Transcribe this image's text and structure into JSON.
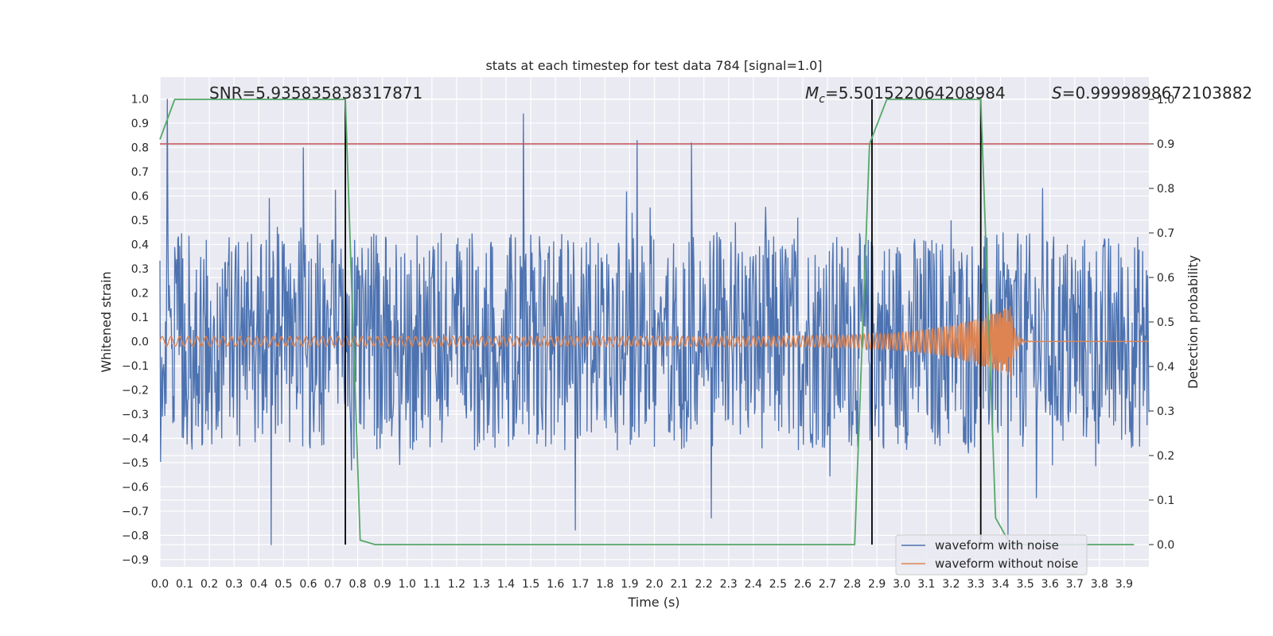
{
  "chart_data": {
    "type": "line",
    "title": "stats at each timestep for test data 784 [signal=1.0]",
    "xlabel": "Time (s)",
    "ylabel": "Whitened strain",
    "y2label": "Detection probability",
    "xlim": [
      0.0,
      4.0
    ],
    "ylim": [
      -0.93,
      1.09
    ],
    "y2lim": [
      -0.05,
      1.05
    ],
    "grid": true,
    "legend_position": "bottom-right",
    "x_ticks": [
      "0.0",
      "0.1",
      "0.2",
      "0.3",
      "0.4",
      "0.5",
      "0.6",
      "0.7",
      "0.8",
      "0.9",
      "1.0",
      "1.1",
      "1.2",
      "1.3",
      "1.4",
      "1.5",
      "1.6",
      "1.7",
      "1.8",
      "1.9",
      "2.0",
      "2.1",
      "2.2",
      "2.3",
      "2.4",
      "2.5",
      "2.6",
      "2.7",
      "2.8",
      "2.9",
      "3.0",
      "3.1",
      "3.2",
      "3.3",
      "3.4",
      "3.5",
      "3.6",
      "3.7",
      "3.8",
      "3.9"
    ],
    "y_ticks": [
      "1.0",
      "0.9",
      "0.8",
      "0.7",
      "0.6",
      "0.5",
      "0.4",
      "0.3",
      "0.2",
      "0.1",
      "0.0",
      "-0.1",
      "-0.2",
      "-0.3",
      "-0.4",
      "-0.5",
      "-0.6",
      "-0.7",
      "-0.8",
      "-0.9"
    ],
    "y2_ticks": [
      "1.0",
      "0.9",
      "0.8",
      "0.7",
      "0.6",
      "0.5",
      "0.4",
      "0.3",
      "0.2",
      "0.1",
      "0.0"
    ],
    "annotations": {
      "snr": "SNR=5.935835838317871",
      "mc_symbol": "M",
      "mc_sub": "c",
      "mc_value": "=5.501522064208984",
      "s_symbol": "S",
      "s_value": "=0.9999898672103882"
    },
    "series": [
      {
        "name": "waveform with noise",
        "color": "#4c72b0",
        "kind": "noise",
        "amplitude": 0.45,
        "peaks": [
          [
            0.03,
            1.0
          ],
          [
            0.58,
            0.8
          ],
          [
            1.47,
            0.94
          ],
          [
            1.93,
            0.83
          ],
          [
            2.15,
            0.82
          ],
          [
            0.45,
            -0.84
          ],
          [
            1.68,
            -0.78
          ],
          [
            2.23,
            -0.73
          ],
          [
            3.43,
            -0.82
          ]
        ]
      },
      {
        "name": "waveform without noise",
        "color": "#dd8452",
        "kind": "chirp",
        "t_merger": 3.44,
        "amp_start": 0.02,
        "amp_peak": 0.15
      },
      {
        "color": "#55a868",
        "axis": "y2",
        "x": [
          0.0,
          0.06,
          0.12,
          0.75,
          0.81,
          0.87,
          2.81,
          2.87,
          2.94,
          3.32,
          3.38,
          3.44,
          3.94
        ],
        "y": [
          0.91,
          1.0,
          1.0,
          1.0,
          0.01,
          0.0,
          0.0,
          0.9,
          1.0,
          1.0,
          0.06,
          0.0,
          0.0
        ]
      }
    ],
    "threshold_y2": 0.9,
    "threshold_color": "#c44e52",
    "vertical_lines_x": [
      0.75,
      2.88,
      3.32
    ]
  }
}
